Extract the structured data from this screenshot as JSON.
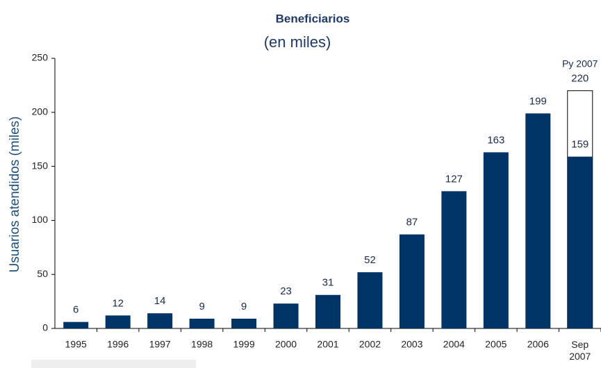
{
  "chart_data": {
    "type": "bar",
    "title": "Beneficiarios",
    "subtitle": "(en miles)",
    "y_label": "Usuarios atendidos (miles)",
    "categories": [
      "1995",
      "1996",
      "1997",
      "1998",
      "1999",
      "2000",
      "2001",
      "2002",
      "2003",
      "2004",
      "2005",
      "2006",
      "Sep 2007"
    ],
    "series": [
      {
        "color": "#ffffff",
        "label": "Py 2007",
        "values": [
          null,
          null,
          null,
          null,
          null,
          null,
          null,
          null,
          null,
          null,
          null,
          null,
          220
        ]
      },
      {
        "color": "#003366",
        "values": [
          6,
          12,
          14,
          9,
          9,
          23,
          31,
          52,
          87,
          127,
          163,
          199,
          159
        ]
      }
    ],
    "ylim": [
      0,
      250
    ],
    "yticks": [
      0,
      50,
      100,
      150,
      200,
      250
    ],
    "grid": false
  }
}
